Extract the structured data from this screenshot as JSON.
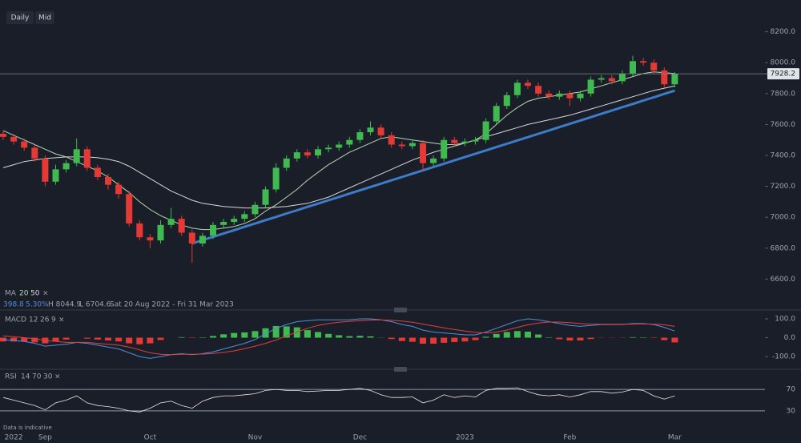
{
  "toolbar": {
    "interval": "Daily",
    "price_type": "Mid"
  },
  "info": {
    "change": "398.8",
    "change_pct": "5.30%",
    "high": "H 8044.9",
    "low": "L 6704.6",
    "range": "Sat 20 Aug 2022 - Fri 31 Mar 2023"
  },
  "footer": "Data is indicative",
  "chart_data": [
    {
      "type": "candlestick",
      "legend_title": "MA",
      "close_icon": "×",
      "categories": [
        null,
        "2022",
        null,
        null,
        "Sep",
        null,
        null,
        null,
        null,
        null,
        null,
        null,
        null,
        null,
        "Oct",
        null,
        null,
        null,
        null,
        null,
        null,
        null,
        null,
        null,
        "Nov",
        null,
        null,
        null,
        null,
        null,
        null,
        null,
        null,
        null,
        "Dec",
        null,
        null,
        null,
        null,
        null,
        null,
        null,
        null,
        null,
        "2023",
        null,
        null,
        null,
        null,
        null,
        null,
        null,
        null,
        null,
        "Feb",
        null,
        null,
        null,
        null,
        null,
        null,
        null,
        null,
        null,
        "Mar"
      ],
      "open": [
        7540,
        7520,
        7490,
        7450,
        7380,
        7230,
        7310,
        7350,
        7440,
        7320,
        7260,
        7210,
        7150,
        6960,
        6870,
        6850,
        6950,
        6990,
        6900,
        6830,
        6880,
        6950,
        6970,
        6990,
        7020,
        7080,
        7180,
        7320,
        7380,
        7420,
        7400,
        7440,
        7450,
        7470,
        7500,
        7550,
        7580,
        7530,
        7470,
        7460,
        7480,
        7350,
        7380,
        7500,
        7480,
        7490,
        7500,
        7620,
        7720,
        7790,
        7870,
        7850,
        7800,
        7780,
        7800,
        7770,
        7800,
        7890,
        7900,
        7880,
        7930,
        8010,
        8000,
        7950,
        7860
      ],
      "high": [
        7560,
        7540,
        7510,
        7470,
        7400,
        7340,
        7370,
        7510,
        7460,
        7340,
        7280,
        7230,
        7170,
        6980,
        6890,
        6980,
        7060,
        7010,
        6920,
        6900,
        6970,
        6990,
        7010,
        7040,
        7100,
        7200,
        7350,
        7400,
        7440,
        7440,
        7460,
        7470,
        7490,
        7520,
        7570,
        7620,
        7600,
        7550,
        7490,
        7500,
        7500,
        7400,
        7520,
        7520,
        7510,
        7520,
        7640,
        7740,
        7810,
        7890,
        7890,
        7870,
        7820,
        7820,
        7820,
        7820,
        7910,
        7920,
        7920,
        7950,
        8044.9,
        8030,
        8020,
        7970,
        7940
      ],
      "low": [
        7500,
        7470,
        7430,
        7360,
        7200,
        7210,
        7290,
        7330,
        7300,
        7240,
        7180,
        7120,
        6940,
        6850,
        6800,
        6830,
        6930,
        6880,
        6704.6,
        6810,
        6860,
        6930,
        6950,
        6970,
        7000,
        7060,
        7160,
        7300,
        7360,
        7380,
        7380,
        7420,
        7430,
        7450,
        7480,
        7530,
        7510,
        7450,
        7440,
        7440,
        7300,
        7330,
        7360,
        7460,
        7460,
        7470,
        7480,
        7600,
        7700,
        7770,
        7830,
        7780,
        7760,
        7760,
        7720,
        7750,
        7780,
        7870,
        7860,
        7860,
        7910,
        7980,
        7930,
        7840,
        7840
      ],
      "close": [
        7520,
        7490,
        7450,
        7380,
        7230,
        7310,
        7350,
        7440,
        7320,
        7260,
        7210,
        7150,
        6960,
        6870,
        6850,
        6950,
        6990,
        6900,
        6830,
        6880,
        6950,
        6970,
        6990,
        7020,
        7080,
        7180,
        7320,
        7380,
        7420,
        7400,
        7440,
        7450,
        7470,
        7500,
        7550,
        7580,
        7530,
        7470,
        7460,
        7480,
        7350,
        7380,
        7500,
        7480,
        7490,
        7500,
        7620,
        7720,
        7790,
        7870,
        7850,
        7800,
        7780,
        7800,
        7770,
        7800,
        7890,
        7900,
        7880,
        7930,
        8010,
        8000,
        7950,
        7860,
        7928.2
      ],
      "up_color": "#3fb950",
      "down_color": "#e53935",
      "series": [
        {
          "name": "20",
          "color": "#b9d8b0",
          "values": [
            7560,
            7530,
            7500,
            7470,
            7440,
            7410,
            7390,
            7360,
            7330,
            7300,
            7260,
            7210,
            7160,
            7100,
            7050,
            7010,
            6980,
            6950,
            6930,
            6920,
            6920,
            6930,
            6940,
            6960,
            6990,
            7040,
            7080,
            7130,
            7180,
            7240,
            7290,
            7340,
            7380,
            7420,
            7450,
            7480,
            7510,
            7520,
            7510,
            7500,
            7490,
            7480,
            7470,
            7470,
            7480,
            7500,
            7540,
            7600,
            7660,
            7710,
            7750,
            7770,
            7780,
            7790,
            7800,
            7810,
            7830,
            7850,
            7870,
            7890,
            7910,
            7930,
            7940,
            7935,
            7930
          ]
        },
        {
          "name": "50",
          "color": "#d8d8d8",
          "values": [
            7320,
            7340,
            7360,
            7370,
            7380,
            7385,
            7390,
            7390,
            7390,
            7385,
            7375,
            7360,
            7330,
            7290,
            7250,
            7210,
            7170,
            7140,
            7110,
            7090,
            7080,
            7070,
            7065,
            7060,
            7060,
            7060,
            7065,
            7070,
            7080,
            7090,
            7110,
            7130,
            7160,
            7190,
            7220,
            7250,
            7280,
            7310,
            7340,
            7370,
            7395,
            7420,
            7440,
            7460,
            7480,
            7500,
            7520,
            7540,
            7560,
            7580,
            7600,
            7615,
            7630,
            7645,
            7660,
            7680,
            7700,
            7720,
            7740,
            7760,
            7780,
            7800,
            7820,
            7835,
            7850
          ]
        }
      ],
      "trendline": {
        "color": "#3d7cc9",
        "values": [
          null,
          null,
          null,
          null,
          null,
          null,
          null,
          null,
          null,
          null,
          null,
          null,
          null,
          null,
          null,
          null,
          null,
          null,
          6830,
          6852,
          6873,
          6895,
          6916,
          6938,
          6959,
          6981,
          7002,
          7024,
          7045,
          7067,
          7088,
          7110,
          7131,
          7153,
          7174,
          7196,
          7217,
          7239,
          7260,
          7282,
          7303,
          7325,
          7346,
          7368,
          7389,
          7411,
          7432,
          7454,
          7475,
          7497,
          7518,
          7540,
          7561,
          7583,
          7604,
          7626,
          7647,
          7669,
          7690,
          7712,
          7733,
          7755,
          7776,
          7798,
          7819
        ]
      },
      "last_price": 7928.2,
      "ylim": [
        6550,
        8250
      ],
      "yticks": [
        {
          "value": 6600,
          "label": "6600.0"
        },
        {
          "value": 6800,
          "label": "6800.0"
        },
        {
          "value": 7000,
          "label": "7000.0"
        },
        {
          "value": 7200,
          "label": "7200.0"
        },
        {
          "value": 7400,
          "label": "7400.0"
        },
        {
          "value": 7600,
          "label": "7600.0"
        },
        {
          "value": 7800,
          "label": "7800.0"
        },
        {
          "value": 8000,
          "label": "8000.0"
        },
        {
          "value": 8200,
          "label": "8200.0"
        }
      ]
    },
    {
      "type": "macd",
      "title": "MACD",
      "params": [
        "12",
        "26",
        "9"
      ],
      "close_icon": "×",
      "histogram": [
        -20,
        -20,
        -20,
        -25,
        -30,
        -20,
        -10,
        0,
        -5,
        -10,
        -15,
        -20,
        -30,
        -35,
        -30,
        -12,
        0,
        3,
        -2,
        2,
        9,
        18,
        25,
        28,
        35,
        50,
        62,
        60,
        55,
        40,
        30,
        20,
        13,
        8,
        10,
        7,
        1,
        -7,
        -18,
        -22,
        -32,
        -32,
        -27,
        -23,
        -20,
        -13,
        5,
        20,
        30,
        35,
        32,
        17,
        2,
        -8,
        -15,
        -15,
        -7,
        -1,
        -1,
        -1,
        3,
        2,
        -2,
        -13,
        -25
      ],
      "up_color": "#3fb950",
      "down_color": "#e53935",
      "series": [
        {
          "color": "#4a90d9",
          "values": [
            -10,
            -15,
            -20,
            -30,
            -45,
            -40,
            -35,
            -25,
            -30,
            -40,
            -50,
            -60,
            -80,
            -100,
            -110,
            -100,
            -90,
            -85,
            -90,
            -85,
            -75,
            -60,
            -45,
            -30,
            -10,
            20,
            50,
            70,
            85,
            90,
            95,
            95,
            95,
            95,
            100,
            100,
            95,
            85,
            70,
            60,
            40,
            30,
            25,
            20,
            15,
            15,
            30,
            50,
            70,
            90,
            100,
            95,
            85,
            75,
            65,
            60,
            65,
            70,
            70,
            70,
            75,
            75,
            70,
            55,
            35
          ]
        },
        {
          "color": "#e04040",
          "values": [
            10,
            5,
            0,
            -5,
            -15,
            -20,
            -25,
            -25,
            -25,
            -30,
            -35,
            -40,
            -50,
            -65,
            -80,
            -88,
            -90,
            -88,
            -88,
            -87,
            -84,
            -78,
            -70,
            -58,
            -45,
            -30,
            -12,
            10,
            30,
            50,
            65,
            75,
            82,
            87,
            90,
            93,
            94,
            92,
            88,
            82,
            72,
            62,
            52,
            43,
            35,
            28,
            25,
            30,
            40,
            55,
            68,
            78,
            83,
            83,
            80,
            75,
            72,
            71,
            71,
            71,
            72,
            73,
            72,
            68,
            60
          ]
        }
      ],
      "ylim": [
        -155,
        134
      ],
      "yticks": [
        {
          "value": 100,
          "label": "100.0"
        },
        {
          "value": 0,
          "label": "0.0"
        },
        {
          "value": -100,
          "label": "-100.0"
        }
      ]
    },
    {
      "type": "rsi",
      "title": "RSI",
      "params": [
        "14",
        "70",
        "30"
      ],
      "close_icon": "×",
      "color": "#e8e8e8",
      "values": [
        55,
        50,
        45,
        40,
        32,
        45,
        50,
        58,
        45,
        40,
        38,
        35,
        30,
        28,
        35,
        45,
        48,
        40,
        35,
        48,
        55,
        58,
        58,
        60,
        62,
        68,
        70,
        68,
        68,
        66,
        67,
        68,
        68,
        70,
        72,
        68,
        60,
        55,
        55,
        56,
        45,
        50,
        60,
        55,
        58,
        56,
        68,
        72,
        72,
        73,
        66,
        60,
        58,
        60,
        56,
        60,
        66,
        66,
        63,
        65,
        70,
        68,
        58,
        52,
        58
      ],
      "ylim": [
        9,
        94
      ],
      "yticks": [
        70,
        30
      ],
      "band_color": "#8a9bb0"
    }
  ]
}
